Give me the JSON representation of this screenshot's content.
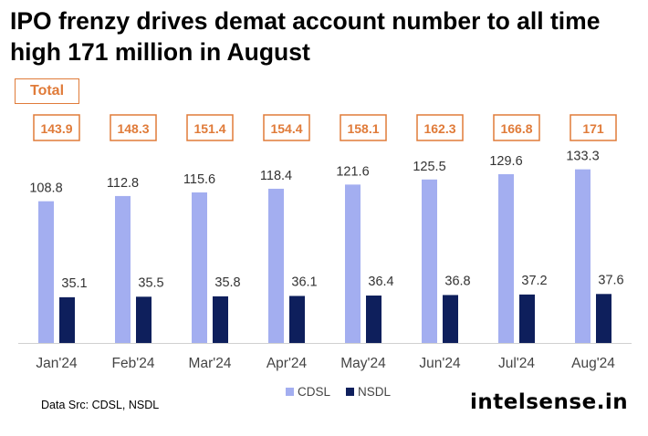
{
  "title": "IPO frenzy drives demat account number to all time high 171 million in August",
  "total_label": "Total",
  "source": "Data Src: CDSL, NSDL",
  "brand": "intelsense.in",
  "colors": {
    "cdsl": "#a3aef0",
    "nsdl": "#0e1f5c",
    "total_border": "#e07b39",
    "total_text": "#e07b39",
    "axis_label": "#444444",
    "value_label": "#333333"
  },
  "chart_data": {
    "type": "bar",
    "categories": [
      "Jan'24",
      "Feb'24",
      "Mar'24",
      "Apr'24",
      "May'24",
      "Jun'24",
      "Jul'24",
      "Aug'24"
    ],
    "series": [
      {
        "name": "CDSL",
        "values": [
          108.8,
          112.8,
          115.6,
          118.4,
          121.6,
          125.5,
          129.6,
          133.3
        ]
      },
      {
        "name": "NSDL",
        "values": [
          35.1,
          35.5,
          35.8,
          36.1,
          36.4,
          36.8,
          37.2,
          37.6
        ]
      }
    ],
    "totals": [
      "143.9",
      "148.3",
      "151.4",
      "154.4",
      "158.1",
      "162.3",
      "166.8",
      "171"
    ],
    "legend": "bottom-center",
    "grid": false
  }
}
